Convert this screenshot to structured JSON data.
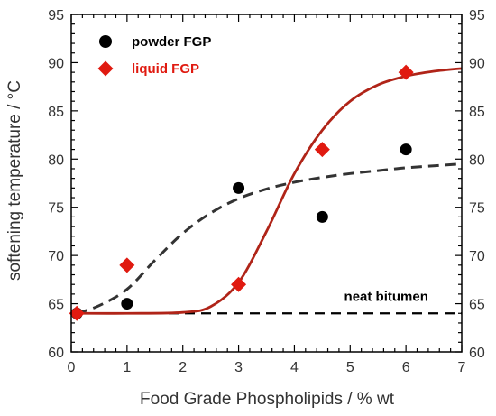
{
  "chart_data": {
    "type": "scatter",
    "xlabel": "Food Grade Phospholipids / % wt",
    "ylabel": "softening temperature / °C",
    "xlim": [
      0,
      7
    ],
    "ylim": [
      60,
      95
    ],
    "x_ticks": [
      "0",
      "1",
      "2",
      "3",
      "4",
      "5",
      "6",
      "7"
    ],
    "y_ticks": [
      "60",
      "65",
      "70",
      "75",
      "80",
      "85",
      "90",
      "95"
    ],
    "grid": false,
    "legend_position": "top-left",
    "series": [
      {
        "name": "powder FGP",
        "marker": "circle",
        "color": "#000000",
        "points": [
          [
            0.1,
            64
          ],
          [
            1,
            65
          ],
          [
            3,
            77
          ],
          [
            4.5,
            74
          ],
          [
            6,
            81
          ]
        ]
      },
      {
        "name": "liquid FGP",
        "marker": "diamond",
        "color": "#e01a10",
        "points": [
          [
            0.1,
            64
          ],
          [
            1,
            69
          ],
          [
            3,
            67
          ],
          [
            4.5,
            81
          ],
          [
            6,
            89
          ]
        ]
      }
    ],
    "fits": [
      {
        "series": "powder FGP",
        "style": "dashed",
        "color": "#333333",
        "points": [
          [
            0.1,
            64
          ],
          [
            0.5,
            64.8
          ],
          [
            1,
            66.5
          ],
          [
            1.5,
            69.5
          ],
          [
            2,
            72.3
          ],
          [
            2.5,
            74.4
          ],
          [
            3,
            75.9
          ],
          [
            3.5,
            76.9
          ],
          [
            4,
            77.6
          ],
          [
            4.5,
            78.1
          ],
          [
            5,
            78.5
          ],
          [
            5.5,
            78.8
          ],
          [
            6,
            79.1
          ],
          [
            6.5,
            79.3
          ],
          [
            7,
            79.5
          ]
        ]
      },
      {
        "series": "liquid FGP",
        "style": "solid",
        "color": "#b02418",
        "points": [
          [
            0.1,
            64
          ],
          [
            1,
            64
          ],
          [
            2,
            64.1
          ],
          [
            2.5,
            64.7
          ],
          [
            3,
            67.2
          ],
          [
            3.5,
            72.5
          ],
          [
            4,
            78.5
          ],
          [
            4.5,
            83
          ],
          [
            5,
            86
          ],
          [
            5.5,
            87.7
          ],
          [
            6,
            88.6
          ],
          [
            6.5,
            89.1
          ],
          [
            7,
            89.4
          ]
        ]
      }
    ],
    "reference_line": {
      "y": 64,
      "style": "dashed",
      "color": "#000000"
    },
    "annotations": [
      {
        "text": "neat bitumen",
        "x": 6.4,
        "y": 65.3
      }
    ]
  }
}
